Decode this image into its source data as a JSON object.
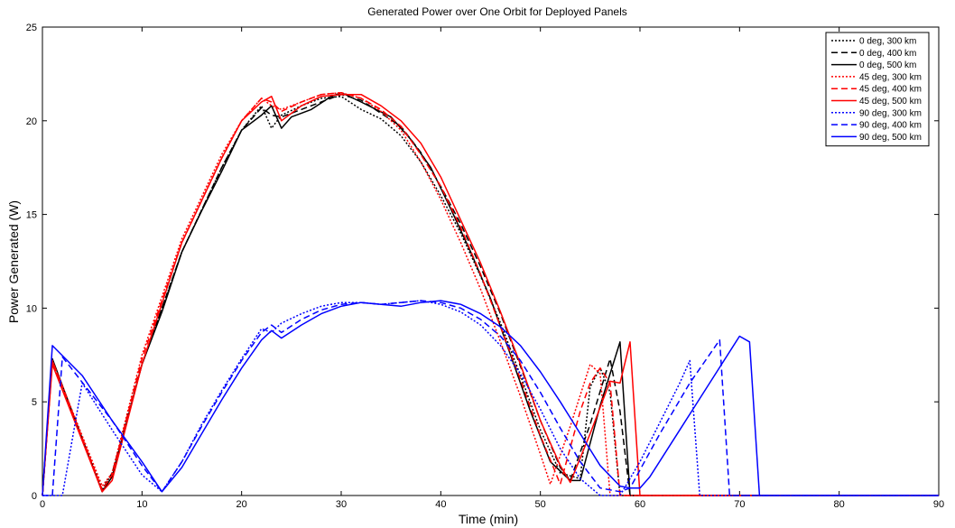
{
  "chart_data": {
    "type": "line",
    "title": "Generated Power over One Orbit for Deployed Panels",
    "xlabel": "Time (min)",
    "ylabel": "Power Generated (W)",
    "xlim": [
      0,
      90
    ],
    "ylim": [
      0,
      25
    ],
    "xticks": [
      "0",
      "10",
      "20",
      "30",
      "40",
      "50",
      "60",
      "70",
      "80",
      "90"
    ],
    "yticks": [
      "0",
      "5",
      "10",
      "15",
      "20",
      "25"
    ],
    "grid": false,
    "legend_position": "top-right",
    "series": [
      {
        "name": "0 deg, 300 km",
        "color": "#000000",
        "dash": "dotted",
        "x": [
          0,
          1,
          6,
          7,
          10,
          14,
          18,
          20,
          22,
          23,
          24,
          26,
          28,
          30,
          32,
          34,
          36,
          38,
          40,
          42,
          44,
          46,
          48,
          50,
          52,
          54,
          55,
          56,
          57,
          58,
          90
        ],
        "y": [
          0,
          7.2,
          0.3,
          1.2,
          7,
          13,
          17.5,
          19.5,
          20.8,
          19.6,
          20.3,
          20.8,
          21.2,
          21.3,
          20.6,
          20.1,
          19.2,
          17.8,
          16,
          14,
          11.7,
          9.2,
          6.4,
          3.5,
          1.2,
          0.9,
          5.8,
          6.8,
          5.5,
          0,
          0
        ]
      },
      {
        "name": "0 deg, 400 km",
        "color": "#000000",
        "dash": "dashed",
        "x": [
          0,
          1,
          6,
          7,
          10,
          14,
          18,
          20,
          22,
          23,
          24,
          26,
          28,
          30,
          32,
          34,
          36,
          38,
          40,
          42,
          44,
          46,
          48,
          50,
          52,
          53,
          55,
          57,
          58,
          59,
          90
        ],
        "y": [
          0,
          7.2,
          0.3,
          1.2,
          7,
          13,
          17.5,
          19.5,
          20.7,
          20.3,
          20.2,
          20.6,
          21,
          21.4,
          21.1,
          20.4,
          19.7,
          18.3,
          16.5,
          14.5,
          12.2,
          9.7,
          6.9,
          4,
          1.5,
          0.8,
          3.8,
          7.3,
          4.5,
          0,
          0
        ]
      },
      {
        "name": "0 deg, 500 km",
        "color": "#000000",
        "dash": "solid",
        "x": [
          0,
          1,
          6,
          7,
          10,
          12,
          14,
          16,
          18,
          20,
          22,
          23,
          24,
          25,
          27,
          29,
          30,
          32,
          35,
          37,
          39,
          41,
          43,
          45,
          47,
          49,
          51,
          53,
          54,
          56,
          58,
          59,
          60,
          90
        ],
        "y": [
          0,
          7.3,
          0.2,
          1,
          7,
          9.8,
          13,
          15.2,
          17.3,
          19.5,
          20.3,
          20.8,
          19.6,
          20.2,
          20.6,
          21.3,
          21.5,
          21,
          20.2,
          19,
          17.5,
          15.3,
          13,
          10.5,
          7.5,
          4.5,
          1.8,
          0.8,
          0.8,
          4.8,
          8.2,
          0,
          0,
          0
        ]
      },
      {
        "name": "45 deg, 300 km",
        "color": "#ff0000",
        "dash": "dotted",
        "x": [
          0,
          1,
          6,
          7,
          10,
          14,
          18,
          20,
          22,
          23,
          24,
          26,
          28,
          30,
          32,
          34,
          36,
          38,
          40,
          42,
          44,
          46,
          48,
          50,
          51,
          53,
          55,
          56,
          57,
          90
        ],
        "y": [
          0,
          7.2,
          0.5,
          1.2,
          7.5,
          13.7,
          18.2,
          20,
          21.2,
          20.8,
          20.6,
          21,
          21.4,
          21.5,
          21.2,
          20.5,
          19.5,
          17.8,
          15.8,
          13.5,
          11,
          8.2,
          5.3,
          2.2,
          0.6,
          3.7,
          7,
          6.5,
          0,
          0
        ]
      },
      {
        "name": "45 deg, 400 km",
        "color": "#ff0000",
        "dash": "dashed",
        "x": [
          0,
          1,
          6,
          7,
          10,
          14,
          18,
          20,
          22,
          23,
          24,
          26,
          28,
          30,
          32,
          34,
          36,
          38,
          40,
          42,
          44,
          46,
          48,
          50,
          52,
          54,
          55,
          56,
          57,
          58,
          90
        ],
        "y": [
          0,
          7.2,
          0.3,
          1.1,
          7.3,
          13.5,
          18,
          20,
          21.2,
          21,
          20.5,
          21,
          21.4,
          21.5,
          21.2,
          20.6,
          19.7,
          18.2,
          16.5,
          14.3,
          11.8,
          9,
          6.2,
          3.2,
          0.6,
          4.5,
          6,
          6.8,
          6,
          0,
          0
        ]
      },
      {
        "name": "45 deg, 500 km",
        "color": "#ff0000",
        "dash": "solid",
        "x": [
          0,
          1,
          6,
          7,
          10,
          14,
          18,
          20,
          22,
          23,
          24,
          26,
          28,
          30,
          32,
          34,
          36,
          38,
          40,
          42,
          44,
          46,
          48,
          50,
          52,
          53,
          55,
          57,
          58,
          59,
          60,
          90
        ],
        "y": [
          0,
          7,
          0.2,
          0.8,
          7,
          13.5,
          18,
          20,
          21,
          21.3,
          20,
          20.8,
          21.3,
          21.4,
          21.4,
          20.8,
          20,
          18.8,
          17,
          14.7,
          12.4,
          9.8,
          7,
          4,
          1.6,
          0.7,
          3.3,
          6.1,
          6,
          8.2,
          0,
          0
        ]
      },
      {
        "name": "90 deg, 300 km",
        "color": "#0000ff",
        "dash": "dotted",
        "x": [
          0,
          2,
          4,
          7,
          10,
          12,
          14,
          16,
          18,
          20,
          22,
          23,
          24,
          26,
          28,
          30,
          32,
          34,
          36,
          38,
          40,
          42,
          44,
          46,
          48,
          50,
          52,
          54,
          56,
          57,
          58,
          60,
          62,
          64,
          65,
          66,
          90
        ],
        "y": [
          0,
          0,
          6,
          3.5,
          1.1,
          0.2,
          1.8,
          3.8,
          5.6,
          7.3,
          8.9,
          8.7,
          9.2,
          9.7,
          10.1,
          10.3,
          10.3,
          10.2,
          10.3,
          10.4,
          10.2,
          9.8,
          9.1,
          8,
          6.5,
          4.6,
          2.5,
          0.9,
          0,
          0,
          0,
          1.8,
          3.9,
          6,
          7.2,
          0,
          0
        ]
      },
      {
        "name": "90 deg, 400 km",
        "color": "#0000ff",
        "dash": "dashed",
        "x": [
          0,
          1,
          2,
          7,
          10,
          12,
          14,
          16,
          18,
          20,
          22,
          23,
          24,
          26,
          28,
          30,
          32,
          34,
          36,
          38,
          40,
          42,
          44,
          46,
          48,
          50,
          52,
          54,
          56,
          58,
          59,
          62,
          65,
          68,
          69,
          90
        ],
        "y": [
          0,
          0,
          7.4,
          4,
          1.6,
          0.2,
          1.8,
          3.7,
          5.5,
          7.2,
          8.7,
          9.1,
          8.7,
          9.4,
          9.9,
          10.2,
          10.3,
          10.2,
          10.3,
          10.4,
          10.3,
          10,
          9.4,
          8.5,
          7.2,
          5.5,
          3.6,
          1.8,
          0.4,
          0.2,
          0.4,
          3.3,
          6,
          8.3,
          0,
          0
        ]
      },
      {
        "name": "90 deg, 500 km",
        "color": "#0000ff",
        "dash": "solid",
        "x": [
          0,
          1,
          4,
          7,
          10,
          12,
          14,
          16,
          18,
          20,
          22,
          23,
          24,
          26,
          28,
          30,
          32,
          34,
          36,
          38,
          40,
          42,
          44,
          46,
          48,
          50,
          52,
          54,
          56,
          58,
          59,
          60,
          61,
          64,
          67,
          70,
          71,
          72,
          90
        ],
        "y": [
          0,
          8,
          6.4,
          4,
          1.8,
          0.2,
          1.5,
          3.3,
          5.1,
          6.8,
          8.3,
          8.8,
          8.4,
          9.1,
          9.7,
          10.1,
          10.3,
          10.2,
          10.1,
          10.3,
          10.4,
          10.2,
          9.7,
          9,
          8,
          6.6,
          5,
          3.3,
          1.6,
          0.5,
          0.4,
          0.4,
          1,
          3.5,
          6,
          8.5,
          8.2,
          0,
          0
        ]
      }
    ]
  }
}
